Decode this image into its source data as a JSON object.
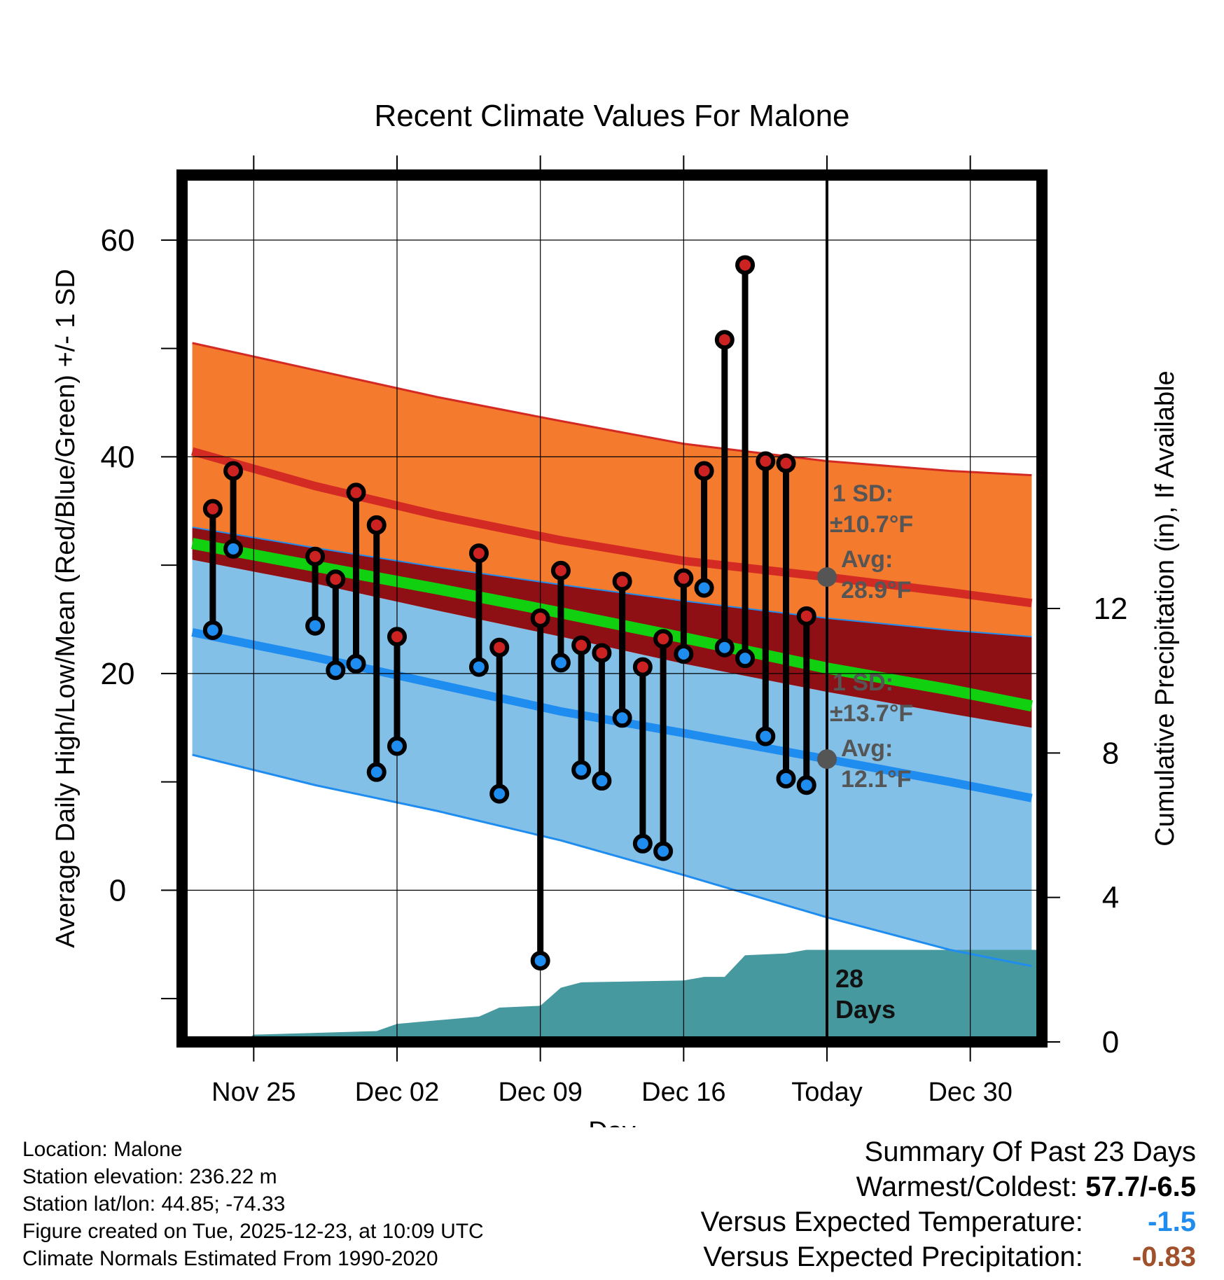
{
  "chart_data": {
    "type": "line",
    "title": "Recent Climate Values For Malone",
    "xlabel": "Day",
    "ylabel": "Average Daily High/Low/Mean (Red/Blue/Green) +/- 1 SD",
    "y2label": "Cumulative Precipitation (in), If Available",
    "xlim": [
      -3.5,
      38.5
    ],
    "ylim": [
      -14,
      66
    ],
    "y2lim": [
      0,
      24
    ],
    "x_ticks": [
      {
        "day": 0,
        "label": "Nov 25"
      },
      {
        "day": 7,
        "label": "Dec 02"
      },
      {
        "day": 14,
        "label": "Dec 09"
      },
      {
        "day": 21,
        "label": "Dec 16"
      },
      {
        "day": 28,
        "label": "Today"
      },
      {
        "day": 35,
        "label": "Dec 30"
      }
    ],
    "y_ticks": [
      0,
      20,
      40,
      60
    ],
    "y2_ticks": [
      0,
      4,
      8,
      12
    ],
    "grid": true,
    "normals": {
      "days": [
        -3,
        3,
        9,
        15,
        21,
        28,
        34,
        38
      ],
      "high_upper": [
        50.5,
        48.0,
        45.5,
        43.3,
        41.2,
        39.6,
        38.7,
        38.3
      ],
      "high_avg": [
        40.5,
        37.3,
        34.6,
        32.3,
        30.4,
        28.9,
        27.5,
        26.5
      ],
      "high_lower": [
        33.5,
        31.6,
        29.8,
        28.2,
        26.7,
        25.1,
        24.0,
        23.4
      ],
      "mean_avg": [
        32.0,
        29.9,
        27.8,
        25.6,
        23.3,
        20.5,
        18.5,
        17.0
      ],
      "low_upper": [
        30.5,
        28.3,
        25.8,
        23.4,
        20.9,
        18.3,
        16.3,
        15.0
      ],
      "low_avg": [
        23.8,
        21.5,
        19.0,
        16.5,
        14.5,
        12.1,
        10.0,
        8.5
      ],
      "low_lower": [
        12.5,
        9.7,
        7.3,
        4.6,
        1.4,
        -2.5,
        -5.5,
        -7.0
      ]
    },
    "series": [
      {
        "name": "Daily High",
        "color": "#cc2222",
        "x": [
          -2,
          -1,
          3,
          4,
          5,
          6,
          7,
          11,
          12,
          14,
          15,
          16,
          17,
          18,
          19,
          20,
          21,
          22,
          23,
          24,
          25,
          26,
          27
        ],
        "values": [
          35.2,
          38.7,
          30.8,
          28.7,
          36.7,
          33.7,
          23.4,
          31.1,
          22.4,
          25.1,
          29.5,
          22.6,
          21.9,
          28.5,
          20.6,
          23.2,
          28.8,
          38.7,
          50.8,
          57.7,
          39.6,
          39.4,
          25.3
        ]
      },
      {
        "name": "Daily Low",
        "color": "#1f8cf0",
        "x": [
          -2,
          -1,
          3,
          4,
          5,
          6,
          7,
          11,
          12,
          14,
          15,
          16,
          17,
          18,
          19,
          20,
          21,
          22,
          23,
          24,
          25,
          26,
          27
        ],
        "values": [
          24.0,
          31.5,
          24.4,
          20.3,
          20.9,
          10.9,
          13.3,
          20.6,
          8.9,
          -6.5,
          21.0,
          11.1,
          10.1,
          15.9,
          4.3,
          3.6,
          21.8,
          27.9,
          22.4,
          21.4,
          14.2,
          10.3,
          9.7
        ]
      }
    ],
    "precipitation": {
      "x": [
        -3.5,
        -0.5,
        0,
        3,
        6,
        7,
        9,
        11,
        12,
        14,
        15,
        16,
        21,
        22,
        23,
        24,
        26,
        27,
        38.5
      ],
      "values": [
        0,
        0,
        0.2,
        0.25,
        0.3,
        0.5,
        0.6,
        0.7,
        0.95,
        1.0,
        1.5,
        1.65,
        1.7,
        1.8,
        1.8,
        2.4,
        2.45,
        2.55,
        2.55
      ]
    },
    "annotations": {
      "high_sd_label": "1 SD:",
      "high_sd_value": "±10.7°F",
      "high_avg_label": "Avg:",
      "high_avg_value": "28.9°F",
      "high_avg": 28.9,
      "low_sd_label": "1 SD:",
      "low_sd_value": "±13.7°F",
      "low_avg_label": "Avg:",
      "low_avg_value": "12.1°F",
      "low_avg": 12.1,
      "days_count": "28",
      "days_word": "Days"
    },
    "colors": {
      "high_band": "#f47a2d",
      "high_line": "#d42a24",
      "mid_band": "#8e0f14",
      "mean_line": "#10d010",
      "low_band": "#82c0e8",
      "low_line": "#1f8cf0",
      "precip": "#46999f",
      "annotation": "#555555"
    }
  },
  "info": {
    "location": "Location: Malone",
    "elevation": "Station elevation: 236.22 m",
    "latlon": "Station lat/lon: 44.85; -74.33",
    "created": "Figure created on Tue, 2025-12-23, at 10:09 UTC",
    "normals": "Climate Normals Estimated From 1990-2020"
  },
  "summary": {
    "title": "Summary Of Past 23 Days",
    "warm_cold_label": "Warmest/Coldest:",
    "warm_cold_value": "57.7/-6.5",
    "temp_label": "Versus Expected Temperature:",
    "temp_value": "-1.5",
    "temp_color": "#1f8cf0",
    "precip_label": "Versus Expected Precipitation:",
    "precip_value": "-0.83",
    "precip_color": "#a0502a"
  }
}
